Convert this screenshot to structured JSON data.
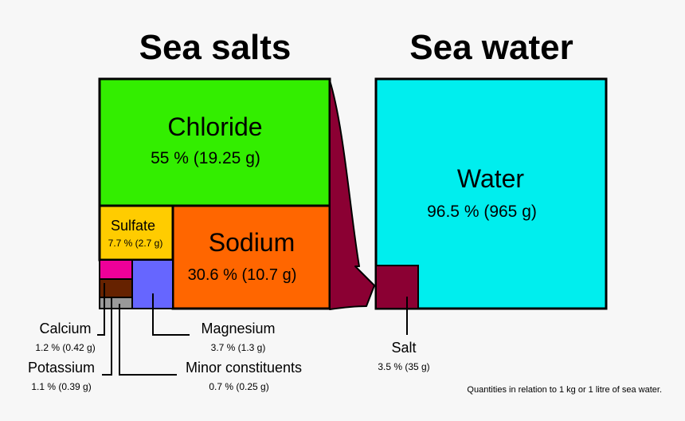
{
  "titles": {
    "left": "Sea salts",
    "right": "Sea water"
  },
  "colors": {
    "chloride": "#33ee00",
    "sulfate": "#ffcc00",
    "sodium": "#ff6600",
    "calcium": "#ee0099",
    "potassium": "#662200",
    "minor": "#999999",
    "magnesium": "#6666ff",
    "water": "#00eeee",
    "salt": "#8b0033",
    "arrow": "#8b0033"
  },
  "sea_salts": {
    "chloride": {
      "name": "Chloride",
      "value": "55 % (19.25 g)"
    },
    "sulfate": {
      "name": "Sulfate",
      "value": "7.7 % (2.7 g)"
    },
    "sodium": {
      "name": "Sodium",
      "value": "30.6 % (10.7 g)"
    },
    "calcium": {
      "name": "Calcium",
      "value": "1.2 % (0.42 g)"
    },
    "potassium": {
      "name": "Potassium",
      "value": "1.1 % (0.39 g)"
    },
    "magnesium": {
      "name": "Magnesium",
      "value": "3.7 % (1.3 g)"
    },
    "minor": {
      "name": "Minor constituents",
      "value": "0.7 % (0.25 g)"
    }
  },
  "sea_water": {
    "water": {
      "name": "Water",
      "value": "96.5 % (965 g)"
    },
    "salt": {
      "name": "Salt",
      "value": "3.5 % (35 g)"
    }
  },
  "footnote": "Quantities in relation to 1 kg or 1 litre of sea water."
}
